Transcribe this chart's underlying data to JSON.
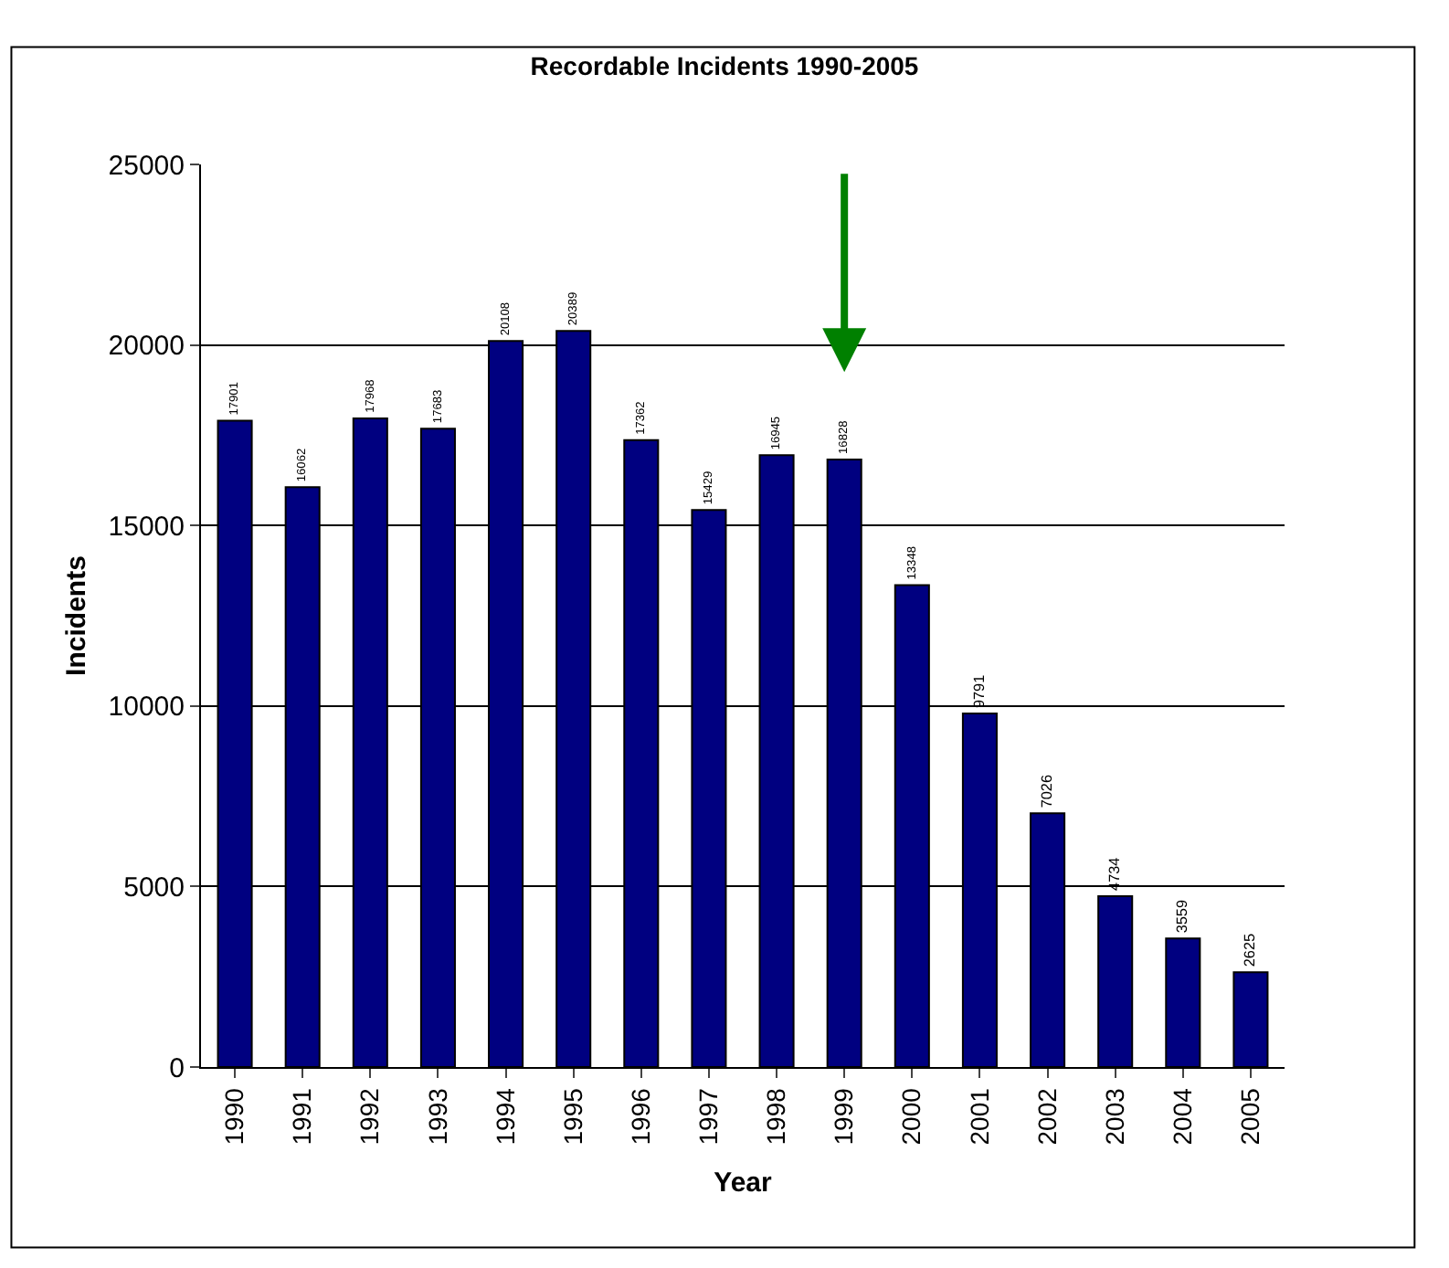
{
  "chart_data": {
    "type": "bar",
    "title": "Recordable Incidents 1990-2005",
    "xlabel": "Year",
    "ylabel": "Incidents",
    "categories": [
      "1990",
      "1991",
      "1992",
      "1993",
      "1994",
      "1995",
      "1996",
      "1997",
      "1998",
      "1999",
      "2000",
      "2001",
      "2002",
      "2003",
      "2004",
      "2005"
    ],
    "values": [
      17901,
      16062,
      17968,
      17683,
      20108,
      20389,
      17362,
      15429,
      16945,
      16828,
      13348,
      9791,
      7026,
      4734,
      3559,
      2625
    ],
    "color": "#000080",
    "ylim": [
      0,
      25000
    ],
    "yticks": [
      0,
      5000,
      10000,
      15000,
      20000,
      25000
    ],
    "grid": "y",
    "data_labels": true
  }
}
